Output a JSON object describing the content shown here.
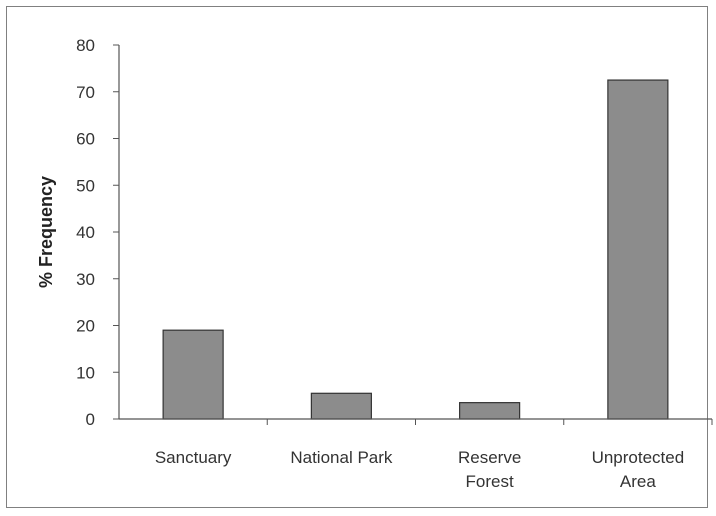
{
  "chart_data": {
    "type": "bar",
    "categories": [
      [
        "Sanctuary"
      ],
      [
        "National Park"
      ],
      [
        "Reserve",
        "Forest"
      ],
      [
        "Unprotected",
        "Area"
      ]
    ],
    "values": [
      19,
      5.5,
      3.5,
      72.5
    ],
    "title": "",
    "xlabel": "",
    "ylabel": "% Frequency",
    "ylim": [
      0,
      80
    ],
    "yticks": [
      0,
      10,
      20,
      30,
      40,
      50,
      60,
      70,
      80
    ],
    "grid": false,
    "legend": "none",
    "colors": {
      "bar_fill": "#8c8c8c",
      "bar_stroke": "#333333",
      "axis": "#555555"
    }
  }
}
